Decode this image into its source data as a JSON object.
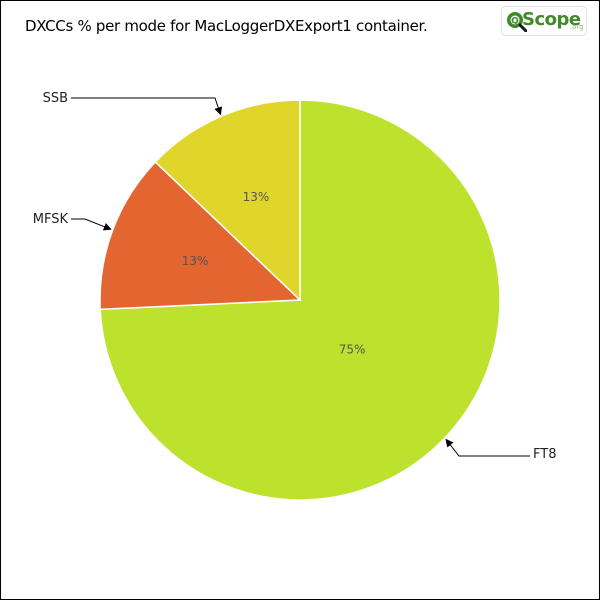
{
  "chart_data": {
    "type": "pie",
    "title": "DXCCs % per mode for MacLoggerDXExport1 container.",
    "slices": [
      {
        "label": "FT8",
        "value": 75,
        "display": "75%",
        "color": "#bde22e"
      },
      {
        "label": "MFSK",
        "value": 13,
        "display": "13%",
        "color": "#e36530"
      },
      {
        "label": "SSB",
        "value": 13,
        "display": "13%",
        "color": "#e0d62b"
      }
    ],
    "legend": "none"
  },
  "logo": {
    "word": "Scope",
    "suffix": ".org"
  }
}
